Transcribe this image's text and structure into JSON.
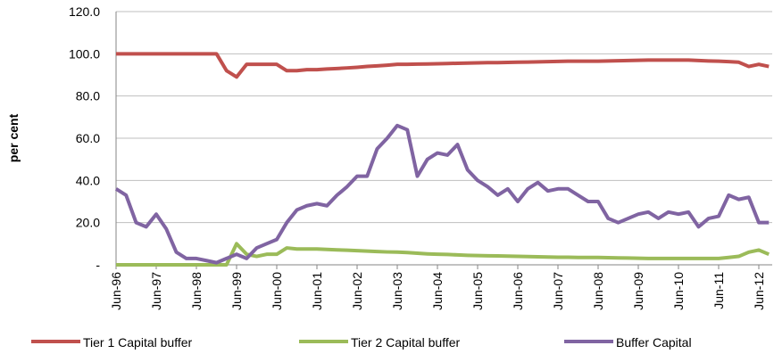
{
  "chart_data": {
    "type": "line",
    "y_label": "per cent",
    "categories": [
      "Jun-96",
      null,
      null,
      null,
      "Jun-97",
      null,
      null,
      null,
      "Jun-98",
      null,
      null,
      null,
      "Jun-99",
      null,
      null,
      null,
      "Jun-00",
      null,
      null,
      null,
      "Jun-01",
      null,
      null,
      null,
      "Jun-02",
      null,
      null,
      null,
      "Jun-03",
      null,
      null,
      null,
      "Jun-04",
      null,
      null,
      null,
      "Jun-05",
      null,
      null,
      null,
      "Jun-06",
      null,
      null,
      null,
      "Jun-07",
      null,
      null,
      null,
      "Jun-08",
      null,
      null,
      null,
      "Jun-09",
      null,
      null,
      null,
      "Jun-10",
      null,
      null,
      null,
      "Jun-11",
      null,
      null,
      null,
      "Jun-12",
      null
    ],
    "series": [
      {
        "name": "Tier 1 Capital buffer",
        "color": "#c0504d",
        "values": [
          100,
          100,
          100,
          100,
          100,
          100,
          100,
          100,
          100,
          100,
          100,
          92,
          89,
          95,
          95,
          95,
          95,
          92,
          92,
          92.5,
          92.5,
          92.8,
          93,
          93.3,
          93.6,
          94,
          94.3,
          94.6,
          95,
          95,
          95.1,
          95.2,
          95.3,
          95.4,
          95.5,
          95.6,
          95.7,
          95.8,
          95.8,
          95.9,
          96,
          96.1,
          96.2,
          96.3,
          96.4,
          96.5,
          96.5,
          96.5,
          96.5,
          96.6,
          96.7,
          96.8,
          96.9,
          97,
          97,
          97,
          97,
          97,
          96.8,
          96.6,
          96.5,
          96.3,
          96,
          94,
          95,
          94
        ]
      },
      {
        "name": "Tier 2 Capital buffer",
        "color": "#9bbb59",
        "values": [
          0,
          0,
          0,
          0,
          0,
          0,
          0,
          0,
          0,
          0,
          0,
          0,
          10,
          5,
          4,
          5,
          5,
          8,
          7.5,
          7.5,
          7.5,
          7.3,
          7.1,
          6.9,
          6.7,
          6.5,
          6.3,
          6.1,
          6,
          5.8,
          5.5,
          5.2,
          5,
          4.9,
          4.7,
          4.5,
          4.4,
          4.3,
          4.2,
          4.1,
          4,
          3.9,
          3.8,
          3.7,
          3.6,
          3.6,
          3.5,
          3.5,
          3.5,
          3.4,
          3.3,
          3.2,
          3.1,
          3,
          3,
          3,
          3,
          3,
          3,
          3,
          3,
          3.5,
          4,
          6,
          7,
          5
        ]
      },
      {
        "name": "Buffer Capital",
        "color": "#8064a2",
        "values": [
          36,
          33,
          20,
          18,
          24,
          17,
          6,
          3,
          3,
          2,
          1,
          3,
          5,
          3,
          8,
          10,
          12,
          20,
          26,
          28,
          29,
          28,
          33,
          37,
          42,
          42,
          55,
          60,
          66,
          64,
          42,
          50,
          53,
          52,
          57,
          45,
          40,
          37,
          33,
          36,
          30,
          36,
          39,
          35,
          36,
          36,
          33,
          30,
          30,
          22,
          20,
          22,
          24,
          25,
          22,
          25,
          24,
          25,
          18,
          22,
          23,
          33,
          31,
          32,
          20,
          20
        ]
      }
    ],
    "ylim": [
      0,
      120
    ],
    "yticks": [
      {
        "value": 0,
        "label": "-"
      },
      {
        "value": 20,
        "label": "20.0"
      },
      {
        "value": 40,
        "label": "40.0"
      },
      {
        "value": 60,
        "label": "60.0"
      },
      {
        "value": 80,
        "label": "80.0"
      },
      {
        "value": 100,
        "label": "100.0"
      },
      {
        "value": 120,
        "label": "120.0"
      }
    ],
    "grid": true
  }
}
